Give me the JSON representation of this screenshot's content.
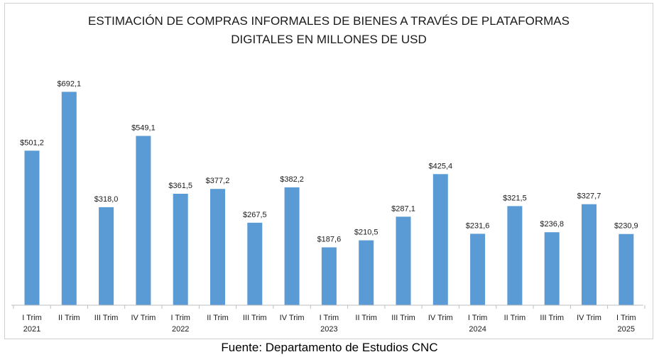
{
  "chart_data": {
    "type": "bar",
    "title_lines": [
      "ESTIMACIÓN DE COMPRAS INFORMALES DE BIENES A TRAVÉS DE PLATAFORMAS",
      "DIGITALES EN MILLONES DE USD"
    ],
    "categories": [
      [
        "I Trim",
        "2021"
      ],
      [
        "II Trim",
        ""
      ],
      [
        "III Trim",
        ""
      ],
      [
        "IV Trim",
        ""
      ],
      [
        "I Trim",
        "2022"
      ],
      [
        "II Trim",
        ""
      ],
      [
        "III Trim",
        ""
      ],
      [
        "IV Trim",
        ""
      ],
      [
        "I Trim",
        "2023"
      ],
      [
        "II Trim",
        ""
      ],
      [
        "III Trim",
        ""
      ],
      [
        "IV Trim",
        ""
      ],
      [
        "I Trim",
        "2024"
      ],
      [
        "II Trim",
        ""
      ],
      [
        "III Trim",
        ""
      ],
      [
        "IV Trim",
        ""
      ],
      [
        "I Trim",
        "2025"
      ]
    ],
    "values": [
      501.2,
      692.1,
      318.0,
      549.1,
      361.5,
      377.2,
      267.5,
      382.2,
      187.6,
      210.5,
      287.1,
      425.4,
      231.6,
      321.5,
      236.8,
      327.7,
      230.9
    ],
    "value_labels": [
      "$501,2",
      "$692,1",
      "$318,0",
      "$549,1",
      "$361,5",
      "$377,2",
      "$267,5",
      "$382,2",
      "$187,6",
      "$210,5",
      "$287,1",
      "$425,4",
      "$231,6",
      "$321,5",
      "$236,8",
      "$327,7",
      "$230,9"
    ],
    "ylim": [
      0,
      700
    ],
    "grid": false,
    "bar_color": "#5b9bd5"
  },
  "source": "Fuente: Departamento de Estudios CNC"
}
